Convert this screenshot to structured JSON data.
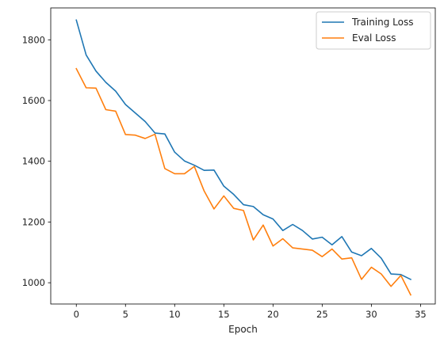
{
  "chart_data": {
    "type": "line",
    "title": "",
    "xlabel": "Epoch",
    "ylabel": "",
    "xlim": [
      -2.6,
      36.5
    ],
    "ylim": [
      930,
      1905
    ],
    "xticks": [
      0,
      5,
      10,
      15,
      20,
      25,
      30,
      35
    ],
    "yticks": [
      1000,
      1200,
      1400,
      1600,
      1800
    ],
    "grid": false,
    "legend_position": "top-right",
    "x": [
      0,
      1,
      2,
      3,
      4,
      5,
      6,
      7,
      8,
      9,
      10,
      11,
      12,
      13,
      14,
      15,
      16,
      17,
      18,
      19,
      20,
      21,
      22,
      23,
      24,
      25,
      26,
      27,
      28,
      29,
      30,
      31,
      32,
      33,
      34
    ],
    "series": [
      {
        "name": "Training Loss",
        "color": "#1f77b4",
        "values": [
          1865,
          1750,
          1697,
          1660,
          1631,
          1587,
          1559,
          1531,
          1493,
          1490,
          1430,
          1401,
          1387,
          1370,
          1371,
          1318,
          1291,
          1257,
          1251,
          1224,
          1210,
          1172,
          1192,
          1172,
          1144,
          1150,
          1125,
          1152,
          1101,
          1089,
          1113,
          1081,
          1029,
          1027,
          1011
        ]
      },
      {
        "name": "Eval Loss",
        "color": "#ff7f0e",
        "values": [
          1705,
          1642,
          1641,
          1570,
          1565,
          1488,
          1486,
          1475,
          1489,
          1376,
          1359,
          1359,
          1383,
          1302,
          1243,
          1286,
          1245,
          1238,
          1141,
          1190,
          1121,
          1145,
          1115,
          1111,
          1107,
          1086,
          1111,
          1078,
          1082,
          1011,
          1051,
          1029,
          988,
          1024,
          960
        ]
      }
    ]
  }
}
